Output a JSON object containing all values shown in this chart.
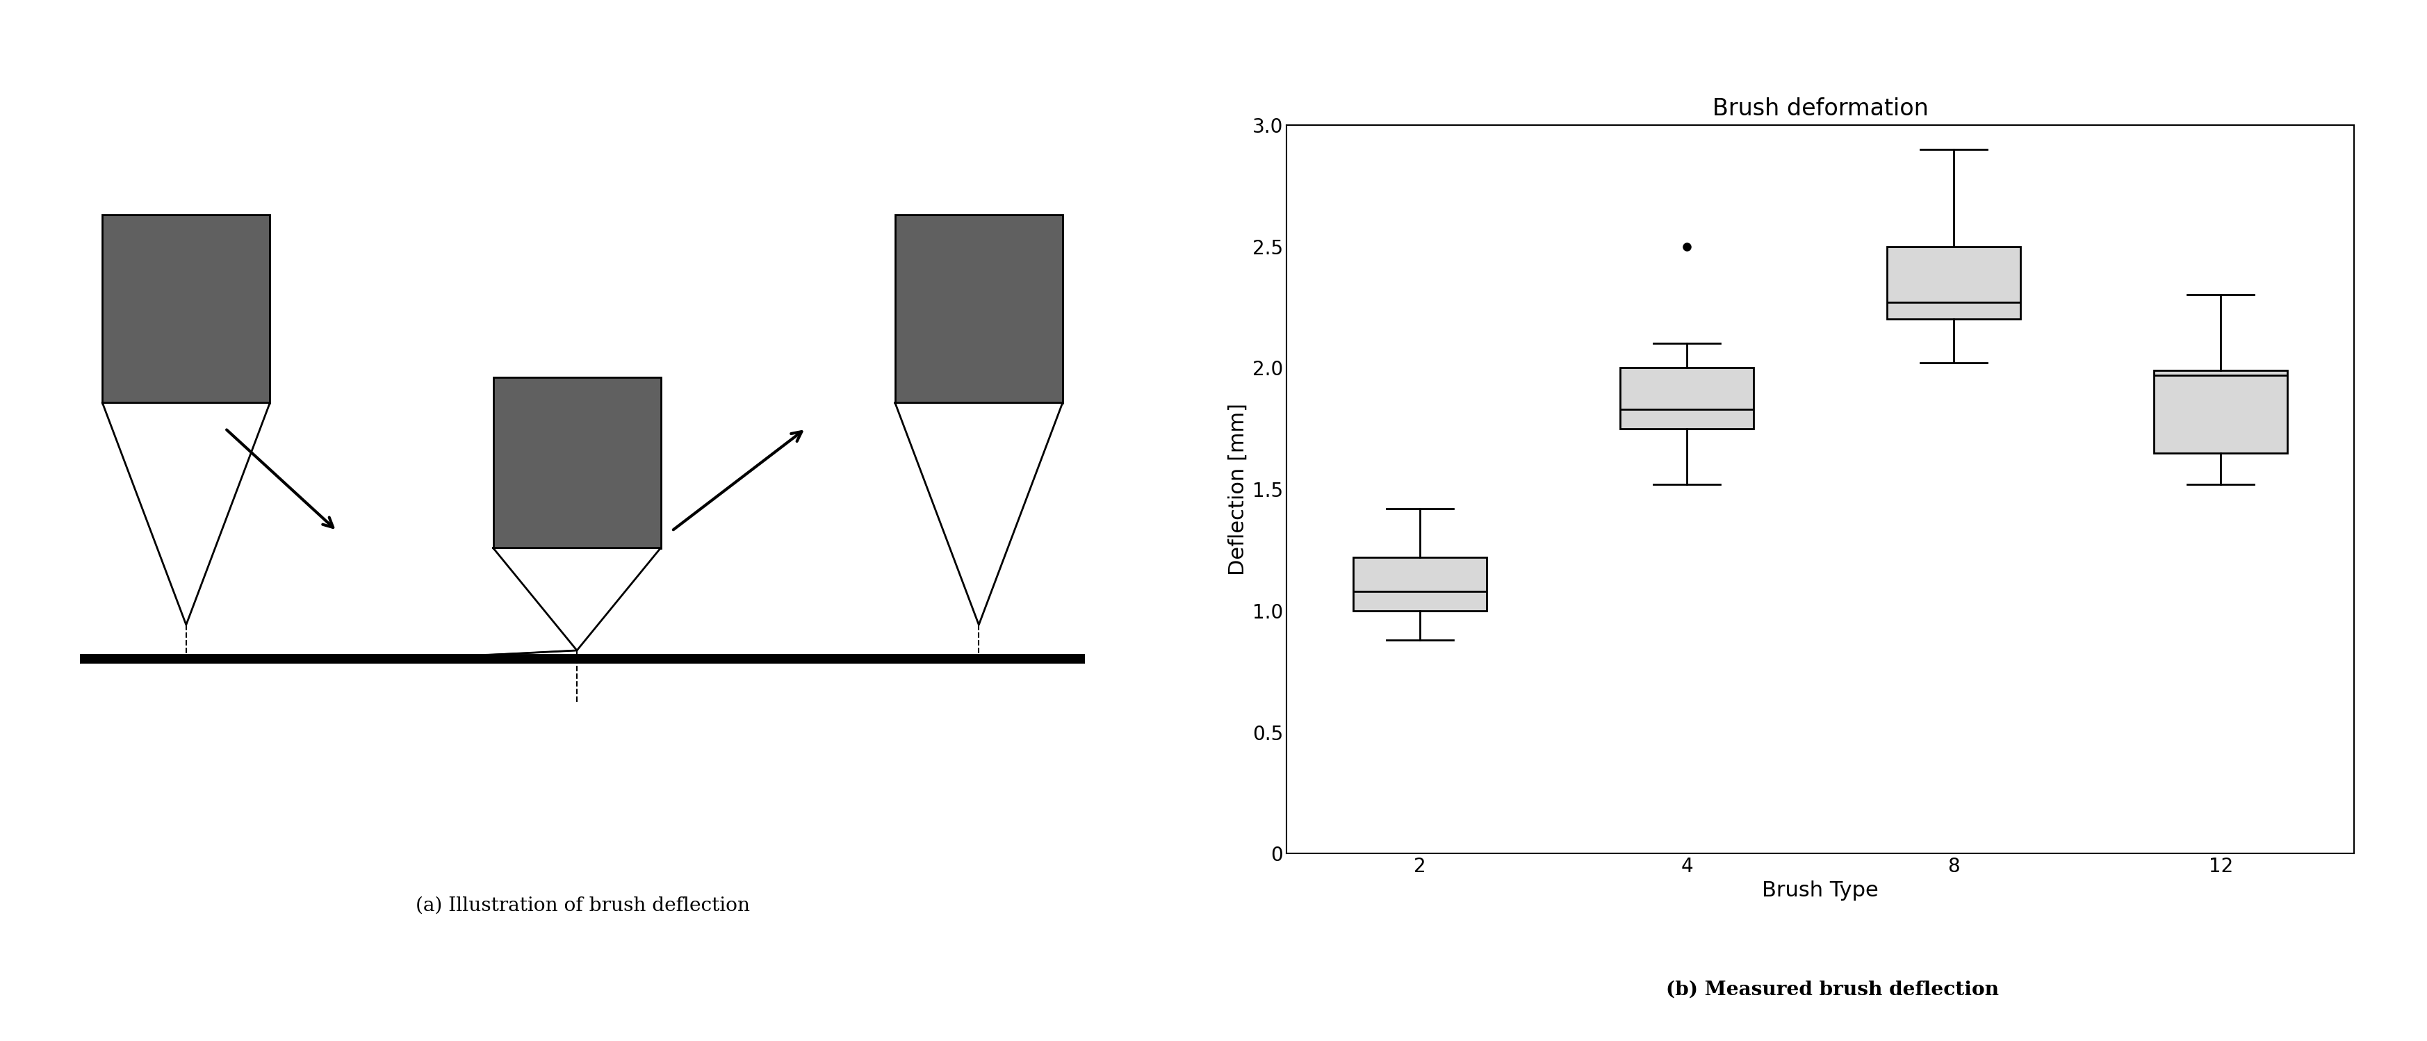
{
  "title_boxplot": "Brush deformation",
  "xlabel_boxplot": "Brush Type",
  "ylabel_boxplot": "Deflection [mm]",
  "ylim": [
    0,
    3
  ],
  "yticks": [
    0,
    0.5,
    1.0,
    1.5,
    2.0,
    2.5,
    3.0
  ],
  "brush_types": [
    "2",
    "4",
    "8",
    "12"
  ],
  "box_data": {
    "2": {
      "whislo": 0.88,
      "q1": 1.0,
      "med": 1.08,
      "q3": 1.22,
      "whishi": 1.42,
      "fliers": []
    },
    "4": {
      "whislo": 1.52,
      "q1": 1.75,
      "med": 1.83,
      "q3": 2.0,
      "whishi": 2.1,
      "fliers": [
        2.5
      ]
    },
    "8": {
      "whislo": 2.02,
      "q1": 2.2,
      "med": 2.27,
      "q3": 2.5,
      "whishi": 2.9,
      "fliers": []
    },
    "12": {
      "whislo": 1.52,
      "q1": 1.65,
      "med": 1.97,
      "q3": 1.99,
      "whishi": 2.3,
      "fliers": []
    }
  },
  "box_facecolor": "#d8d8d8",
  "box_edgecolor": "#000000",
  "median_color": "#000000",
  "whisker_color": "#000000",
  "cap_color": "#000000",
  "flier_color": "#000000",
  "caption_a": "(a) Illustration of brush deflection",
  "caption_b": "(b) Measured brush deflection",
  "caption_fontsize": 28,
  "background_color": "#ffffff",
  "gray_dark": "#606060",
  "gray_light": "#d8d8d8"
}
